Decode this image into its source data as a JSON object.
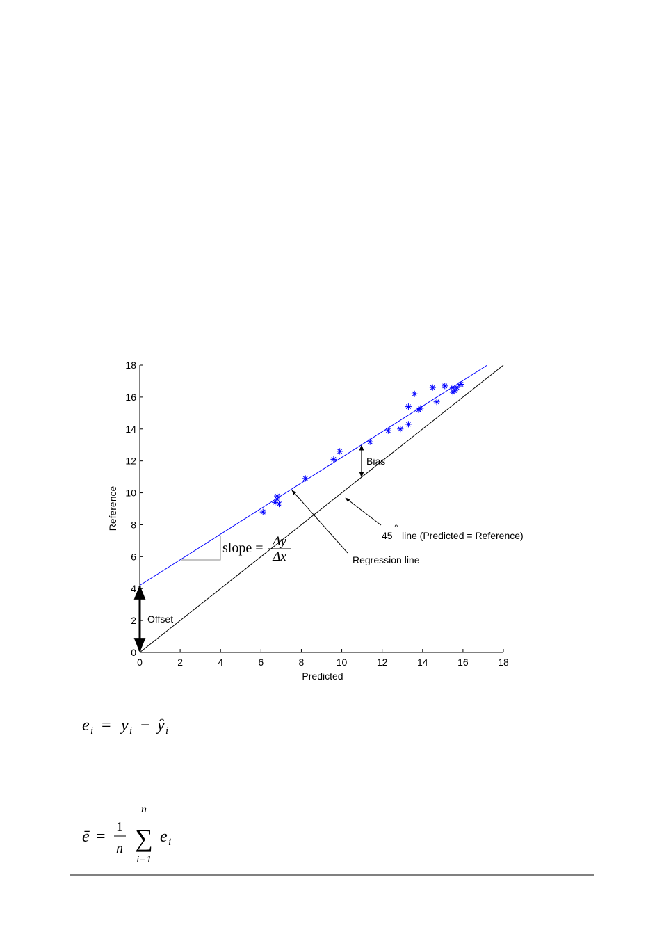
{
  "chart_data": {
    "type": "scatter",
    "xlabel": "Predicted",
    "ylabel": "Reference",
    "xlim": [
      0,
      18
    ],
    "ylim": [
      0,
      18
    ],
    "xticks": [
      0,
      2,
      4,
      6,
      8,
      10,
      12,
      14,
      16,
      18
    ],
    "yticks": [
      0,
      2,
      4,
      6,
      8,
      10,
      12,
      14,
      16,
      18
    ],
    "points": {
      "color": "#0000ff",
      "x": [
        6.1,
        6.8,
        6.8,
        6.7,
        6.9,
        8.2,
        9.6,
        9.9,
        11.4,
        12.3,
        12.9,
        13.3,
        13.3,
        13.6,
        13.8,
        13.9,
        14.5,
        14.7,
        15.1,
        15.5,
        15.5,
        15.6,
        15.7,
        15.9
      ],
      "values": [
        8.8,
        9.8,
        9.6,
        9.4,
        9.3,
        10.9,
        12.1,
        12.6,
        13.2,
        13.9,
        14.0,
        14.3,
        15.4,
        16.2,
        15.2,
        15.3,
        16.6,
        15.7,
        16.7,
        16.6,
        16.3,
        16.4,
        16.6,
        16.8
      ]
    },
    "lines": [
      {
        "color": "#0000ff",
        "x": [
          0,
          17.2
        ],
        "values": [
          4.2,
          18
        ]
      },
      {
        "color": "#000000",
        "x": [
          0,
          18
        ],
        "values": [
          0,
          18
        ]
      }
    ],
    "annotations": {
      "bias": "Bias",
      "offset": "Offset",
      "regression": "Regression line",
      "line45_num": "45",
      "line45_deg": "°",
      "line45_rest": "line (Predicted = Reference)",
      "slope": "slope =",
      "dy": "Δy",
      "dx": "Δx"
    }
  },
  "equations": [
    [
      "e",
      "i",
      "=",
      "y",
      "i",
      "−",
      "ŷ",
      "i"
    ],
    [
      "ē",
      "=",
      "1",
      "n",
      "n",
      "∑",
      "i=1",
      "e",
      "i"
    ]
  ]
}
